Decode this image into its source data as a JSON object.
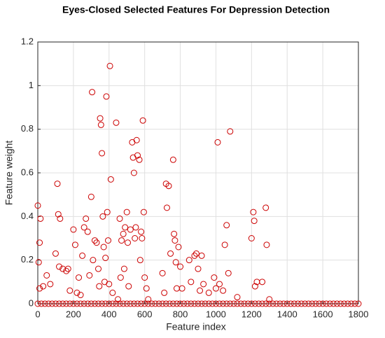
{
  "chart_data": {
    "type": "scatter",
    "title": "Eyes-Closed Selected Features For Depression Detection",
    "xlabel": "Feature index",
    "ylabel": "Feature weight",
    "color": "#cc0000",
    "grid": true,
    "xlim": [
      0,
      1800
    ],
    "ylim": [
      0,
      1.2
    ],
    "xticks": [
      0,
      200,
      400,
      600,
      800,
      1000,
      1200,
      1400,
      1600,
      1800
    ],
    "yticks": [
      0,
      0.2,
      0.4,
      0.6,
      0.8,
      1,
      1.2
    ],
    "x": [
      0,
      5,
      10,
      15,
      10,
      30,
      50,
      70,
      100,
      110,
      115,
      125,
      120,
      140,
      160,
      170,
      180,
      200,
      210,
      220,
      230,
      240,
      250,
      260,
      270,
      280,
      290,
      300,
      305,
      310,
      320,
      330,
      340,
      345,
      350,
      355,
      360,
      365,
      370,
      375,
      380,
      385,
      390,
      395,
      400,
      405,
      410,
      420,
      440,
      450,
      460,
      465,
      470,
      480,
      485,
      490,
      500,
      505,
      510,
      520,
      530,
      535,
      540,
      545,
      550,
      555,
      560,
      570,
      575,
      580,
      585,
      590,
      595,
      600,
      610,
      620,
      700,
      710,
      720,
      725,
      735,
      745,
      760,
      765,
      770,
      775,
      780,
      790,
      800,
      810,
      850,
      860,
      880,
      890,
      900,
      910,
      920,
      930,
      960,
      990,
      1000,
      1010,
      1020,
      1040,
      1050,
      1060,
      1070,
      1080,
      1120,
      1200,
      1210,
      1215,
      1220,
      1230,
      1260,
      1280,
      1285,
      1300,
      0,
      20,
      40,
      60,
      80,
      100,
      120,
      140,
      160,
      180,
      200,
      220,
      240,
      260,
      280,
      300,
      320,
      340,
      360,
      380,
      400,
      420,
      440,
      460,
      480,
      500,
      520,
      540,
      560,
      580,
      600,
      620,
      640,
      660,
      680,
      700,
      720,
      740,
      760,
      780,
      800,
      820,
      840,
      860,
      880,
      900,
      920,
      940,
      960,
      980,
      1000,
      1020,
      1040,
      1060,
      1080,
      1100,
      1120,
      1140,
      1160,
      1180,
      1200,
      1220,
      1240,
      1260,
      1280,
      1300,
      1320,
      1340,
      1360,
      1380,
      1400,
      1420,
      1440,
      1460,
      1480,
      1500,
      1520,
      1540,
      1560,
      1580,
      1600,
      1620,
      1640,
      1660,
      1680,
      1700,
      1720,
      1740,
      1760,
      1780,
      1800
    ],
    "values": [
      0.45,
      0.19,
      0.28,
      0.39,
      0.07,
      0.08,
      0.13,
      0.09,
      0.23,
      0.55,
      0.41,
      0.39,
      0.17,
      0.16,
      0.15,
      0.16,
      0.06,
      0.34,
      0.27,
      0.05,
      0.12,
      0.04,
      0.22,
      0.35,
      0.39,
      0.33,
      0.13,
      0.49,
      0.97,
      0.2,
      0.29,
      0.28,
      0.16,
      0.08,
      0.85,
      0.82,
      0.69,
      0.4,
      0.26,
      0.1,
      0.21,
      0.95,
      0.42,
      0.29,
      0.09,
      1.09,
      0.57,
      0.05,
      0.83,
      0.02,
      0.39,
      0.12,
      0.29,
      0.32,
      0.16,
      0.35,
      0.42,
      0.28,
      0.08,
      0.34,
      0.74,
      0.67,
      0.6,
      0.3,
      0.35,
      0.75,
      0.68,
      0.66,
      0.2,
      0.33,
      0.3,
      0.84,
      0.42,
      0.12,
      0.07,
      0.02,
      0.14,
      0.05,
      0.55,
      0.44,
      0.54,
      0.23,
      0.66,
      0.32,
      0.29,
      0.19,
      0.07,
      0.26,
      0.17,
      0.07,
      0.2,
      0.1,
      0.22,
      0.23,
      0.16,
      0.06,
      0.22,
      0.09,
      0.05,
      0.12,
      0.07,
      0.74,
      0.09,
      0.06,
      0.27,
      0.36,
      0.14,
      0.79,
      0.03,
      0.3,
      0.42,
      0.38,
      0.08,
      0.1,
      0.1,
      0.44,
      0.27,
      0.02,
      0,
      0,
      0,
      0,
      0,
      0,
      0,
      0,
      0,
      0,
      0,
      0,
      0,
      0,
      0,
      0,
      0,
      0,
      0,
      0,
      0,
      0,
      0,
      0,
      0,
      0,
      0,
      0,
      0,
      0,
      0,
      0,
      0,
      0,
      0,
      0,
      0,
      0,
      0,
      0,
      0,
      0,
      0,
      0,
      0,
      0,
      0,
      0,
      0,
      0,
      0,
      0,
      0,
      0,
      0,
      0,
      0,
      0,
      0,
      0,
      0,
      0,
      0,
      0,
      0,
      0,
      0,
      0,
      0,
      0,
      0,
      0,
      0,
      0,
      0,
      0,
      0,
      0,
      0,
      0,
      0,
      0,
      0,
      0,
      0,
      0,
      0,
      0,
      0,
      0,
      0
    ]
  }
}
